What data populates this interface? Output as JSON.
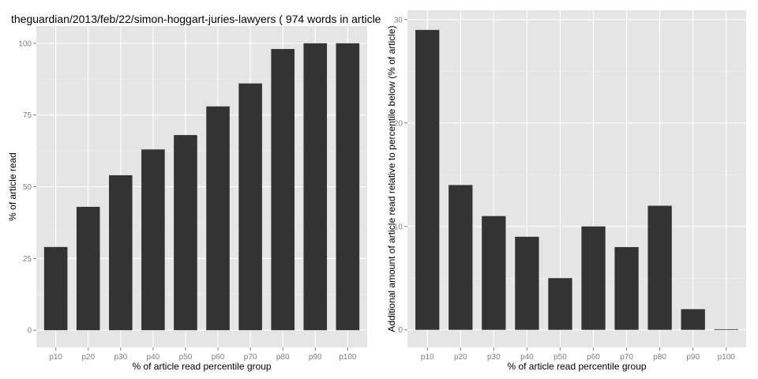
{
  "chart_data": [
    {
      "type": "bar",
      "title": "theguardian/2013/feb/22/simon-hoggart-juries-lawyers ( 974 words in article)",
      "xlabel": "% of article read percentile group",
      "ylabel": "% of article read",
      "categories": [
        "p10",
        "p20",
        "p30",
        "p40",
        "p50",
        "p60",
        "p70",
        "p80",
        "p90",
        "p100"
      ],
      "values": [
        29,
        43,
        54,
        63,
        68,
        78,
        86,
        98,
        100,
        100
      ],
      "ylim": [
        -6,
        106
      ],
      "yticks": [
        0,
        25,
        50,
        75,
        100
      ],
      "grid": true
    },
    {
      "type": "bar",
      "title": "",
      "xlabel": "% of article read percentile group",
      "ylabel": "Additional amount of article read relative to percentile below (% of article)",
      "categories": [
        "p10",
        "p20",
        "p30",
        "p40",
        "p50",
        "p60",
        "p70",
        "p80",
        "p90",
        "p100"
      ],
      "values": [
        29,
        14,
        11,
        9,
        5,
        10,
        8,
        12,
        2,
        0
      ],
      "ylim": [
        -1.7,
        30.9
      ],
      "yticks": [
        0,
        10,
        20,
        30
      ],
      "grid": true
    }
  ]
}
